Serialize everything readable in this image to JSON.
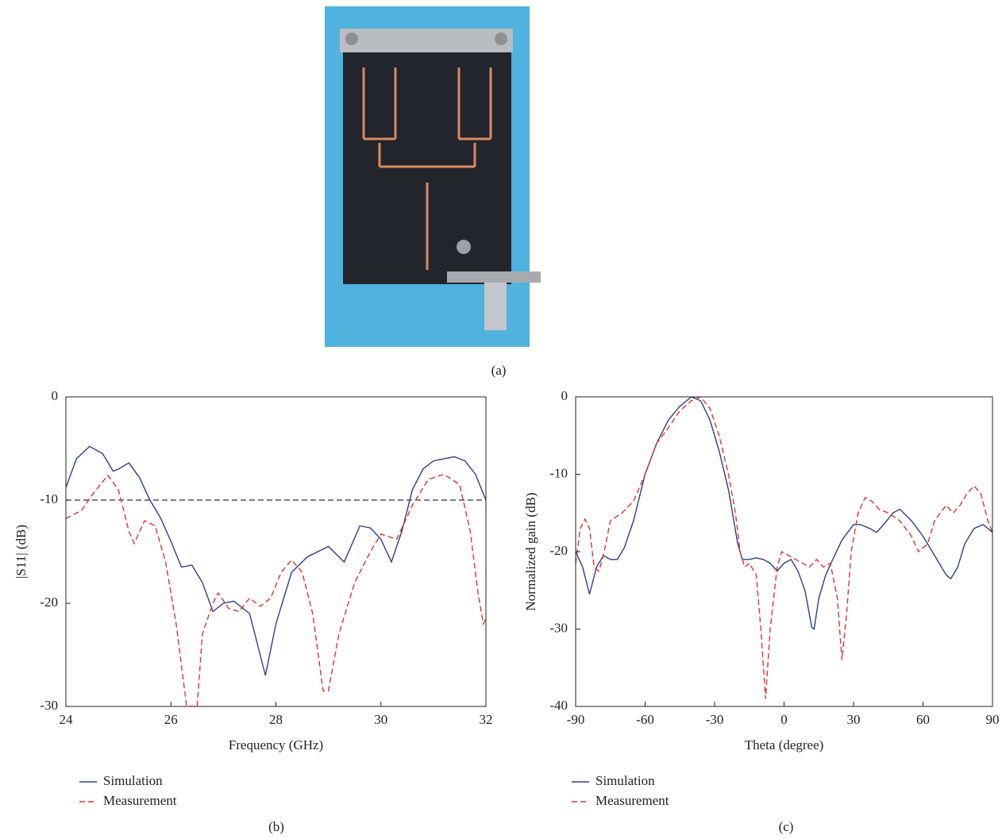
{
  "photo": {
    "caption": "(a)"
  },
  "chart_data": [
    {
      "type": "line",
      "caption": "(b)",
      "xlabel": "Frequency (GHz)",
      "ylabel": "|S11| (dB)",
      "xlim": [
        24,
        32
      ],
      "xticks": [
        24,
        26,
        28,
        30,
        32
      ],
      "ylim": [
        -30,
        0
      ],
      "yticks": [
        -30,
        -20,
        -10,
        0
      ],
      "legend": "below",
      "reference_lines": [
        {
          "y": -10,
          "color": "#333333",
          "style": "dashed"
        }
      ],
      "series": [
        {
          "name": "Simulation",
          "color": "#2b3f8f",
          "style": "solid",
          "x": [
            24,
            24.2,
            24.45,
            24.7,
            24.9,
            25.0,
            25.2,
            25.4,
            25.6,
            25.8,
            26.0,
            26.2,
            26.4,
            26.6,
            26.8,
            27.0,
            27.2,
            27.5,
            27.8,
            28.0,
            28.3,
            28.6,
            29.0,
            29.3,
            29.6,
            29.8,
            30.0,
            30.2,
            30.4,
            30.6,
            30.8,
            31.0,
            31.4,
            31.6,
            31.8,
            32
          ],
          "values": [
            -8.8,
            -6,
            -4.8,
            -5.5,
            -7.2,
            -7.0,
            -6.4,
            -7.8,
            -10,
            -11.7,
            -14,
            -16.5,
            -16.3,
            -18,
            -20.8,
            -20,
            -19.8,
            -21,
            -27,
            -22,
            -17,
            -15.5,
            -14.5,
            -16,
            -12.5,
            -12.7,
            -13.8,
            -16,
            -13,
            -9,
            -7,
            -6.2,
            -5.8,
            -6.2,
            -7.5,
            -10
          ]
        },
        {
          "name": "Measurement",
          "color": "#e8302a",
          "style": "dashed",
          "x": [
            24,
            24.3,
            24.5,
            24.8,
            25.0,
            25.2,
            25.3,
            25.5,
            25.7,
            25.9,
            26.1,
            26.3,
            26.5,
            26.6,
            26.8,
            26.9,
            27.1,
            27.3,
            27.5,
            27.7,
            27.9,
            28.1,
            28.3,
            28.5,
            28.7,
            28.9,
            29.0,
            29.2,
            29.5,
            29.8,
            30.0,
            30.3,
            30.6,
            30.9,
            31.2,
            31.5,
            31.7,
            31.85,
            31.95,
            32.0
          ],
          "values": [
            -11.8,
            -11,
            -9.5,
            -7.6,
            -9,
            -13,
            -14.2,
            -12,
            -12.5,
            -16,
            -22,
            -30,
            -30,
            -23,
            -20,
            -19,
            -20.5,
            -20.8,
            -19.5,
            -20.3,
            -19.5,
            -17,
            -15.8,
            -17,
            -21,
            -28.5,
            -28.5,
            -23,
            -18,
            -15,
            -13.3,
            -13.8,
            -10.5,
            -8,
            -7.5,
            -8.5,
            -13,
            -19,
            -22,
            -21.5
          ]
        }
      ]
    },
    {
      "type": "line",
      "caption": "(c)",
      "xlabel": "Theta (degree)",
      "ylabel": "Normalized gain (dB)",
      "xlim": [
        -90,
        90
      ],
      "xticks": [
        -90,
        -60,
        -30,
        0,
        30,
        60,
        90
      ],
      "ylim": [
        -40,
        0
      ],
      "yticks": [
        -40,
        -30,
        -20,
        -10,
        0
      ],
      "legend": "below",
      "series": [
        {
          "name": "Simulation",
          "color": "#2b3f8f",
          "style": "solid",
          "x": [
            -90,
            -87,
            -84,
            -81,
            -78,
            -75,
            -72,
            -69,
            -65,
            -60,
            -55,
            -50,
            -45,
            -40,
            -36,
            -32,
            -28,
            -24,
            -20,
            -18,
            -15,
            -12,
            -9,
            -6,
            -3,
            0,
            3,
            6,
            9,
            12,
            13,
            15,
            18,
            21,
            25,
            30,
            33,
            37,
            40,
            43,
            47,
            50,
            55,
            60,
            65,
            70,
            72,
            75,
            78,
            82,
            86,
            90
          ],
          "values": [
            -20,
            -22,
            -25.5,
            -22,
            -20.5,
            -21,
            -21,
            -19.5,
            -16,
            -10,
            -6,
            -3,
            -1.2,
            0,
            -0.5,
            -3,
            -7,
            -12,
            -19,
            -21,
            -21,
            -20.8,
            -21,
            -21.5,
            -22.5,
            -21.5,
            -21,
            -22.5,
            -25,
            -29.8,
            -30,
            -26,
            -23,
            -21,
            -18.5,
            -16.5,
            -16.5,
            -17,
            -17.5,
            -16.5,
            -15,
            -14.5,
            -16,
            -18,
            -20.5,
            -23,
            -23.5,
            -22,
            -19,
            -17,
            -16.5,
            -17.5
          ]
        },
        {
          "name": "Measurement",
          "color": "#e8302a",
          "style": "dashed",
          "x": [
            -90,
            -88,
            -86,
            -84,
            -82,
            -80,
            -78,
            -75,
            -70,
            -65,
            -60,
            -55,
            -50,
            -45,
            -40,
            -36,
            -32,
            -28,
            -24,
            -21,
            -19,
            -17,
            -15,
            -12,
            -10,
            -8,
            -6,
            -3,
            -1,
            2,
            5,
            8,
            11,
            14,
            17,
            20,
            23,
            25,
            27,
            29,
            32,
            35,
            38,
            41,
            45,
            50,
            55,
            58,
            62,
            65,
            70,
            73,
            76,
            79,
            82,
            85,
            88,
            90
          ],
          "values": [
            -21.5,
            -17,
            -15.8,
            -17,
            -22,
            -22.5,
            -20.5,
            -16,
            -15,
            -13.5,
            -10,
            -6,
            -4,
            -1.8,
            -0.5,
            0,
            -1.5,
            -5,
            -10,
            -15,
            -20,
            -22,
            -21.5,
            -23,
            -30,
            -39,
            -30,
            -22,
            -20,
            -20.5,
            -21,
            -21.5,
            -22,
            -21,
            -22,
            -21.5,
            -26,
            -34,
            -28,
            -20,
            -15,
            -13,
            -13.5,
            -14.5,
            -15,
            -16,
            -18,
            -20,
            -19,
            -16,
            -14,
            -15,
            -14,
            -12.5,
            -11.5,
            -12.5,
            -16,
            -17.5
          ]
        }
      ]
    }
  ]
}
